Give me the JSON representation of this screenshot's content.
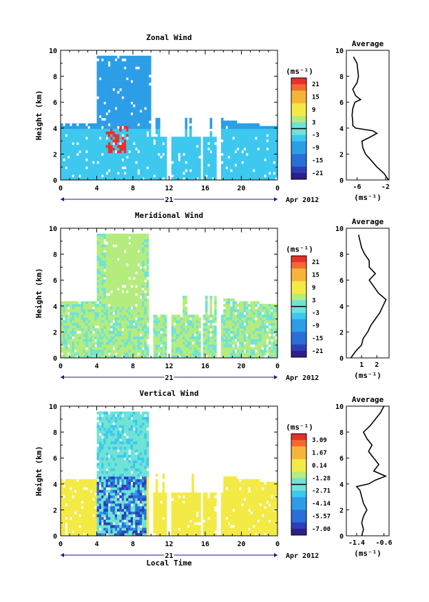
{
  "figure": {
    "date_label": "Apr 2012",
    "day_label": "21",
    "xlabel": "Local Time",
    "ylabel": "Height (km)",
    "avg_title": "Average",
    "unit": "(ms⁻¹)"
  },
  "chart_data": [
    {
      "type": "heatmap",
      "title": "Zonal Wind",
      "xlabel": "",
      "ylabel": "Height (km)",
      "x_ticks": [
        "0",
        "4",
        "8",
        "12",
        "16",
        "20",
        "0"
      ],
      "xlim": [
        0,
        24
      ],
      "y_ticks": [
        "0",
        "2",
        "4",
        "6",
        "8",
        "10"
      ],
      "ylim": [
        0,
        10
      ],
      "colorbar": {
        "label": "(ms⁻¹)",
        "ticks": [
          "21",
          "15",
          "9",
          "3",
          "-3",
          "-9",
          "-15",
          "-21"
        ],
        "range": [
          -24,
          24
        ]
      },
      "avg_profile": {
        "title": "Average",
        "x_ticks": [
          "-6",
          "-2"
        ],
        "xlim": [
          -7.5,
          -1.5
        ],
        "height": [
          0,
          0.5,
          1,
          1.5,
          2,
          2.5,
          3,
          3.3,
          3.6,
          3.8,
          4,
          4.2,
          4.5,
          5,
          5.5,
          6,
          6.2,
          6.5,
          7,
          7.5,
          8,
          8.5,
          9,
          9.5
        ],
        "value": [
          -1.6,
          -2.2,
          -3.2,
          -4,
          -4.8,
          -5.2,
          -5.3,
          -4.2,
          -3.2,
          -3.8,
          -6.2,
          -6.6,
          -6.6,
          -6.7,
          -6.6,
          -6.3,
          -5.5,
          -6.2,
          -6.6,
          -6,
          -5.8,
          -5.9,
          -6,
          -6.5
        ]
      }
    },
    {
      "type": "heatmap",
      "title": "Meridional Wind",
      "xlabel": "",
      "ylabel": "Height (km)",
      "x_ticks": [
        "0",
        "4",
        "8",
        "12",
        "16",
        "20",
        "0"
      ],
      "xlim": [
        0,
        24
      ],
      "y_ticks": [
        "0",
        "2",
        "4",
        "6",
        "8",
        "10"
      ],
      "ylim": [
        0,
        10
      ],
      "colorbar": {
        "label": "(ms⁻¹)",
        "ticks": [
          "21",
          "15",
          "9",
          "3",
          "-3",
          "-9",
          "-15",
          "-21"
        ],
        "range": [
          -24,
          24
        ]
      },
      "avg_profile": {
        "title": "Average",
        "x_ticks": [
          "1",
          "2"
        ],
        "xlim": [
          0,
          2.8
        ],
        "height": [
          0,
          0.5,
          1,
          1.5,
          2,
          2.5,
          3,
          3.5,
          4,
          4.5,
          5,
          5.5,
          6,
          6.5,
          7,
          7.5,
          8,
          8.5,
          9,
          9.5
        ],
        "value": [
          0.3,
          0.6,
          1.0,
          1.1,
          1.4,
          1.6,
          1.9,
          2.2,
          2.4,
          2.6,
          2.1,
          1.8,
          1.5,
          1.9,
          1.5,
          1.5,
          1.2,
          1.0,
          0.9,
          0.8
        ]
      }
    },
    {
      "type": "heatmap",
      "title": "Vertical Wind",
      "xlabel": "Local Time",
      "ylabel": "Height (km)",
      "x_ticks": [
        "0",
        "4",
        "8",
        "12",
        "16",
        "20",
        "0"
      ],
      "xlim": [
        0,
        24
      ],
      "y_ticks": [
        "0",
        "2",
        "4",
        "6",
        "8",
        "10"
      ],
      "ylim": [
        0,
        10
      ],
      "colorbar": {
        "label": "(ms⁻¹)",
        "ticks": [
          "3.09",
          "1.67",
          "0.14",
          "-1.28",
          "-2.71",
          "-4.14",
          "-5.57",
          "-7.00"
        ],
        "range": [
          -7.7,
          3.8
        ]
      },
      "avg_profile": {
        "title": "Average",
        "x_ticks": [
          "-1.4",
          "-0.6"
        ],
        "xlim": [
          -1.7,
          -0.45
        ],
        "height": [
          0,
          0.5,
          1,
          1.5,
          2,
          2.5,
          3,
          3.5,
          3.8,
          4,
          4.3,
          4.6,
          5,
          5.5,
          6,
          6.5,
          7,
          7.5,
          8,
          8.5,
          9,
          9.5,
          10
        ],
        "value": [
          -1.25,
          -1.2,
          -1.25,
          -1.2,
          -1.1,
          -1.2,
          -1.25,
          -1.3,
          -1.4,
          -1.05,
          -0.85,
          -0.55,
          -0.9,
          -0.75,
          -0.9,
          -1.05,
          -0.95,
          -1.1,
          -1.2,
          -1.0,
          -0.85,
          -0.7,
          -0.6
        ]
      }
    }
  ]
}
